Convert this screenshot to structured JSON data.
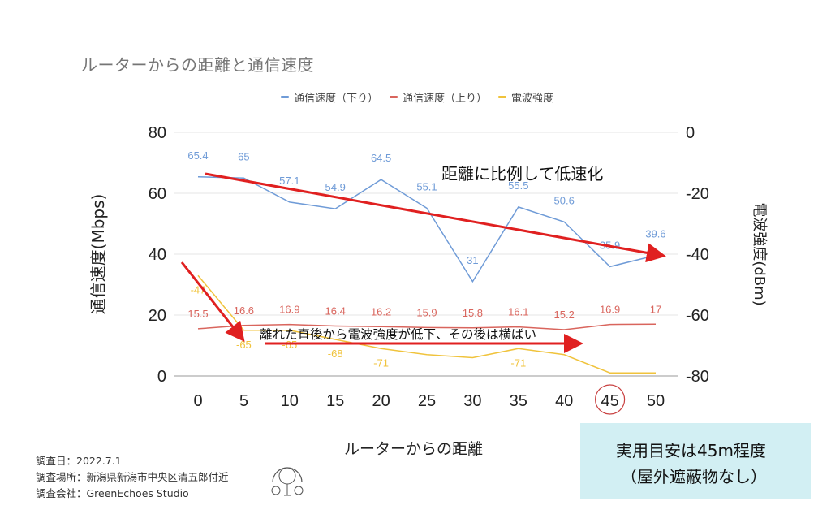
{
  "chart_data": {
    "type": "line",
    "title": "ルーターからの距離と通信速度",
    "xlabel": "ルーターからの距離",
    "ylabel": "通信速度(Mbps)",
    "y2label": "電波強度(dBm)",
    "categories": [
      "0",
      "5",
      "10",
      "15",
      "20",
      "25",
      "30",
      "35",
      "40",
      "45",
      "50"
    ],
    "ylim": [
      0,
      80
    ],
    "y2lim": [
      -80,
      0
    ],
    "yticks": [
      "0",
      "20",
      "40",
      "60",
      "80"
    ],
    "y2ticks": [
      "-80",
      "-60",
      "-40",
      "-20",
      "0"
    ],
    "grid": true,
    "legend_position": "top-center",
    "series": [
      {
        "name": "通信速度（下り）",
        "axis": "left",
        "color": "#6f9bd7",
        "values": [
          65.4,
          65,
          57.1,
          54.9,
          64.5,
          55.1,
          31,
          55.5,
          50.6,
          35.9,
          39.6
        ],
        "labels": [
          "65.4",
          "65",
          "57.1",
          "54.9",
          "64.5",
          "55.1",
          "31",
          "55.5",
          "50.6",
          "35.9",
          "39.6"
        ]
      },
      {
        "name": "通信速度（上り）",
        "axis": "left",
        "color": "#d9655d",
        "values": [
          15.5,
          16.6,
          16.9,
          16.4,
          16.2,
          15.9,
          15.8,
          16.1,
          15.2,
          16.9,
          17
        ],
        "labels": [
          "15.5",
          "16.6",
          "16.9",
          "16.4",
          "16.2",
          "15.9",
          "15.8",
          "16.1",
          "15.2",
          "16.9",
          "17"
        ]
      },
      {
        "name": "電波強度",
        "axis": "right",
        "color": "#f0c33c",
        "values": [
          -47,
          -65,
          -65,
          -68,
          -71,
          -73,
          -74,
          -71,
          -73,
          -79,
          -79
        ],
        "labels": [
          "-47",
          "-65",
          "-65",
          "-68",
          "-71",
          "",
          "",
          "-71",
          "",
          "",
          ""
        ]
      }
    ],
    "annotations": [
      {
        "text": "距離に比例して低速化"
      },
      {
        "text": "離れた直後から電波強度が低下、その後は横ばい"
      },
      {
        "text": "45",
        "note": "circled x-axis category"
      }
    ]
  },
  "infobox": {
    "line1": "実用目安は45m程度",
    "line2": "（屋外遮蔽物なし）"
  },
  "footer": {
    "date": "調査日：2022.7.1",
    "place": "調査場所：新潟県新潟市中央区清五郎付近",
    "company": "調査会社：GreenEchoes Studio"
  },
  "logo": {
    "text": "Green Echoes Studio"
  },
  "colors": {
    "arrow": "#e02020",
    "grid": "#e6e6e6",
    "axis_text": "#222222",
    "infobox_bg": "#d2eff3"
  }
}
